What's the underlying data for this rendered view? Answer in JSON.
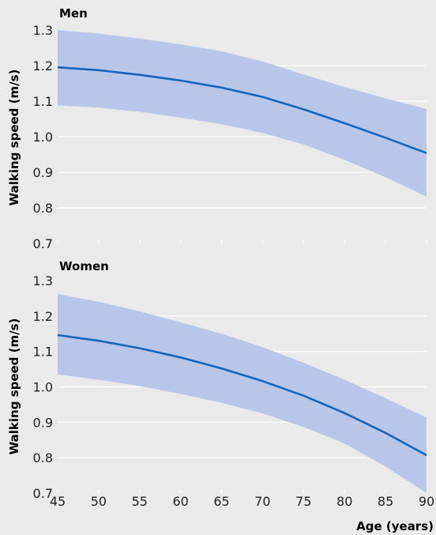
{
  "chart_data": [
    {
      "type": "area",
      "title": "Men",
      "ylabel": "Walking speed (m/s)",
      "xlim": [
        45,
        90
      ],
      "ylim": [
        0.7,
        1.3
      ],
      "yticks": [
        "1.3",
        "1.2",
        "1.1",
        "1.0",
        "0.9",
        "0.8",
        "0.7"
      ],
      "grid": true,
      "series": [
        {
          "role": "estimate",
          "x": [
            45,
            50,
            55,
            60,
            65,
            70,
            75,
            80,
            85,
            90
          ],
          "y": [
            1.195,
            1.187,
            1.174,
            1.158,
            1.138,
            1.112,
            1.077,
            1.038,
            0.997,
            0.954
          ]
        },
        {
          "role": "upper-bound",
          "x": [
            45,
            50,
            55,
            60,
            65,
            70,
            75,
            80,
            85,
            90
          ],
          "y": [
            1.3,
            1.29,
            1.276,
            1.26,
            1.24,
            1.212,
            1.175,
            1.14,
            1.108,
            1.078
          ]
        },
        {
          "role": "lower-bound",
          "x": [
            45,
            50,
            55,
            60,
            65,
            70,
            75,
            80,
            85,
            90
          ],
          "y": [
            1.088,
            1.082,
            1.07,
            1.054,
            1.035,
            1.011,
            0.978,
            0.935,
            0.886,
            0.832
          ]
        }
      ]
    },
    {
      "type": "area",
      "title": "Women",
      "ylabel": "Walking speed (m/s)",
      "xlabel": "Age (years)",
      "xlim": [
        45,
        90
      ],
      "ylim": [
        0.7,
        1.3
      ],
      "xticks": [
        "45",
        "50",
        "55",
        "60",
        "65",
        "70",
        "75",
        "80",
        "85",
        "90"
      ],
      "yticks": [
        "1.3",
        "1.2",
        "1.1",
        "1.0",
        "0.9",
        "0.8",
        "0.7"
      ],
      "grid": true,
      "series": [
        {
          "role": "estimate",
          "x": [
            45,
            50,
            55,
            60,
            65,
            70,
            75,
            80,
            85,
            90
          ],
          "y": [
            1.146,
            1.13,
            1.109,
            1.083,
            1.052,
            1.016,
            0.975,
            0.926,
            0.87,
            0.807
          ]
        },
        {
          "role": "upper-bound",
          "x": [
            45,
            50,
            55,
            60,
            65,
            70,
            75,
            80,
            85,
            90
          ],
          "y": [
            1.262,
            1.24,
            1.213,
            1.182,
            1.15,
            1.112,
            1.068,
            1.02,
            0.968,
            0.913
          ]
        },
        {
          "role": "lower-bound",
          "x": [
            45,
            50,
            55,
            60,
            65,
            70,
            75,
            80,
            85,
            90
          ],
          "y": [
            1.035,
            1.02,
            1.002,
            0.98,
            0.955,
            0.925,
            0.887,
            0.84,
            0.775,
            0.7
          ]
        }
      ]
    }
  ],
  "colors": {
    "line": "#1565b8",
    "band": "#b8c6ea",
    "grid": "#ffffff",
    "background": "#eaeaea"
  }
}
